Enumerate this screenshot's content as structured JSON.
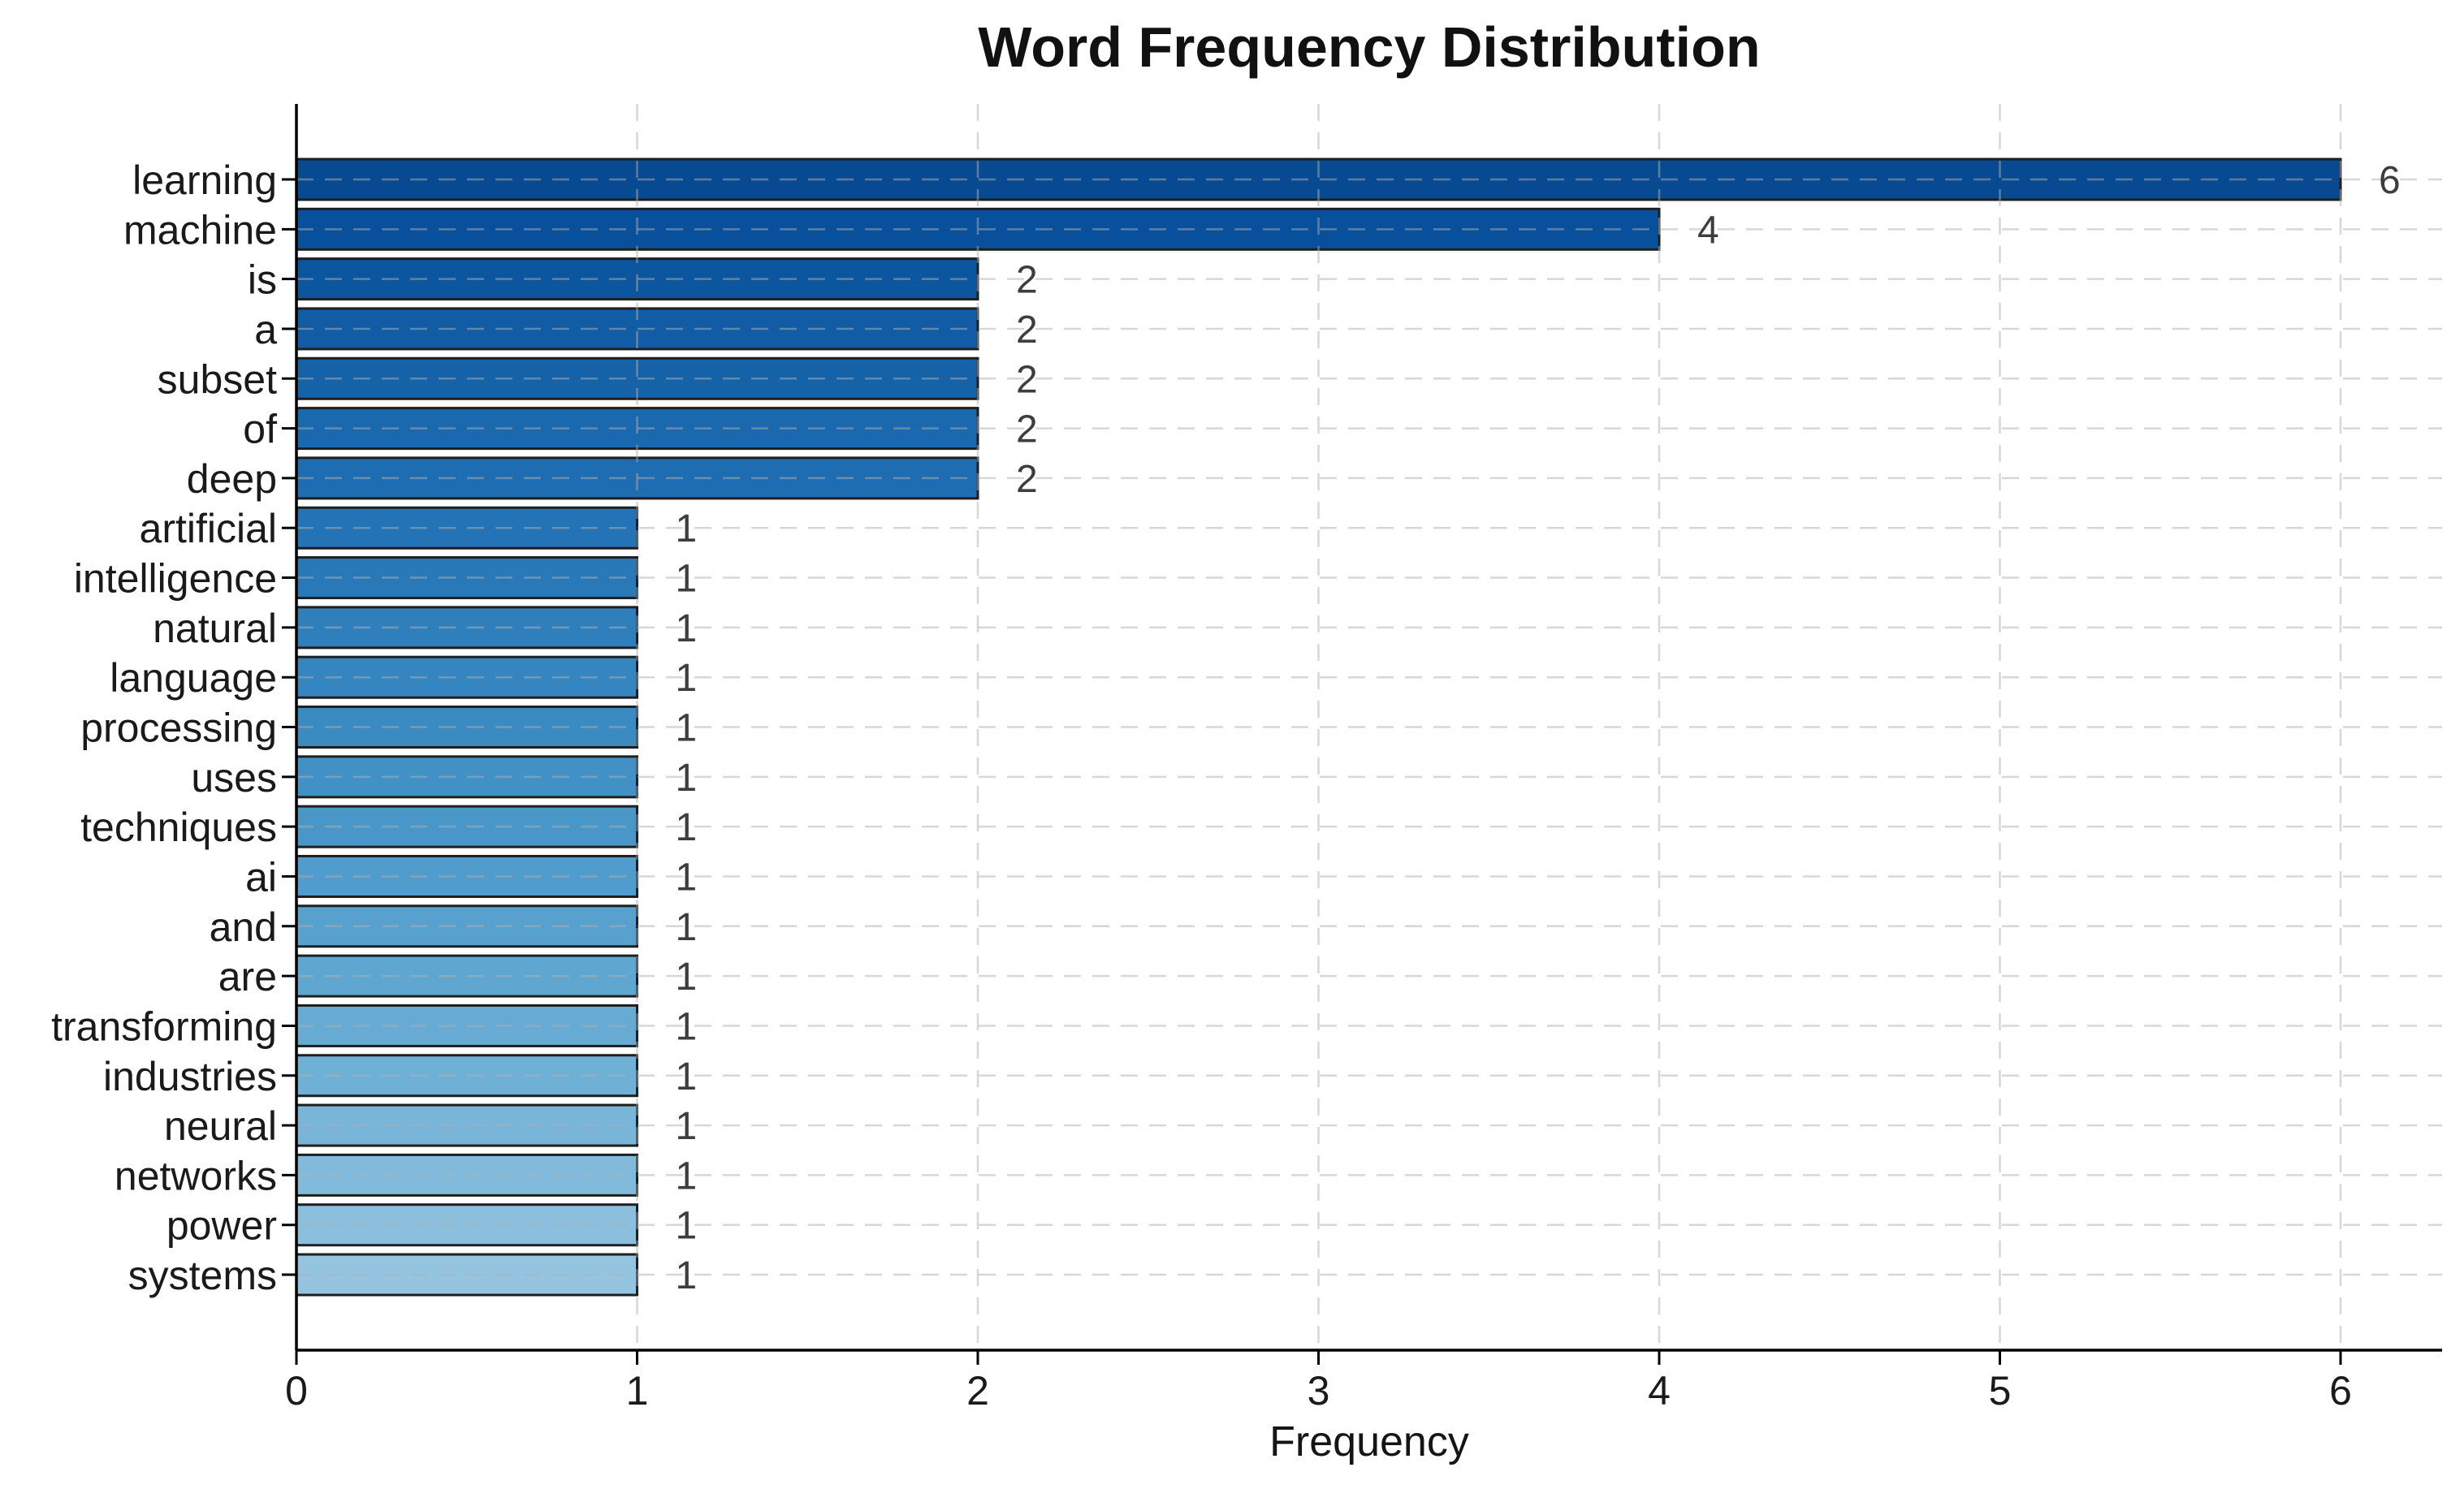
{
  "chart_data": {
    "type": "bar",
    "orientation": "horizontal",
    "title": "Word Frequency Distribution",
    "xlabel": "Frequency",
    "ylabel": "",
    "categories": [
      "learning",
      "machine",
      "is",
      "a",
      "subset",
      "of",
      "deep",
      "artificial",
      "intelligence",
      "natural",
      "language",
      "processing",
      "uses",
      "techniques",
      "ai",
      "and",
      "are",
      "transforming",
      "industries",
      "neural",
      "networks",
      "power",
      "systems"
    ],
    "values": [
      6,
      4,
      2,
      2,
      2,
      2,
      2,
      1,
      1,
      1,
      1,
      1,
      1,
      1,
      1,
      1,
      1,
      1,
      1,
      1,
      1,
      1,
      1
    ],
    "value_labels": [
      "6",
      "4",
      "2",
      "2",
      "2",
      "2",
      "2",
      "1",
      "1",
      "1",
      "1",
      "1",
      "1",
      "1",
      "1",
      "1",
      "1",
      "1",
      "1",
      "1",
      "1",
      "1",
      "1"
    ],
    "xticks": [
      "0",
      "1",
      "2",
      "3",
      "4",
      "5",
      "6"
    ],
    "xlim": [
      0,
      6.3
    ],
    "grid": "dashed",
    "legend": "none",
    "bar_colors": [
      "#084a92",
      "#08509b",
      "#0c56a0",
      "#115ca5",
      "#1562a9",
      "#1a68ae",
      "#1e6db2",
      "#2373b6",
      "#2979b9",
      "#2f7fbc",
      "#3585c0",
      "#3b8bc3",
      "#4191c6",
      "#4997c9",
      "#509ccc",
      "#58a1ce",
      "#5fa6d1",
      "#67abd4",
      "#6fb0d7",
      "#78b5d9",
      "#81badb",
      "#8bbfdd",
      "#94c4df"
    ],
    "bar_edge_color": "#1f1f1f",
    "grid_color": "#b0b0b0",
    "axis_color": "#000000",
    "title_color": "#111111",
    "tick_label_color": "#1a1a1a",
    "value_label_color": "#3d3d3d",
    "background_color": "#ffffff"
  }
}
